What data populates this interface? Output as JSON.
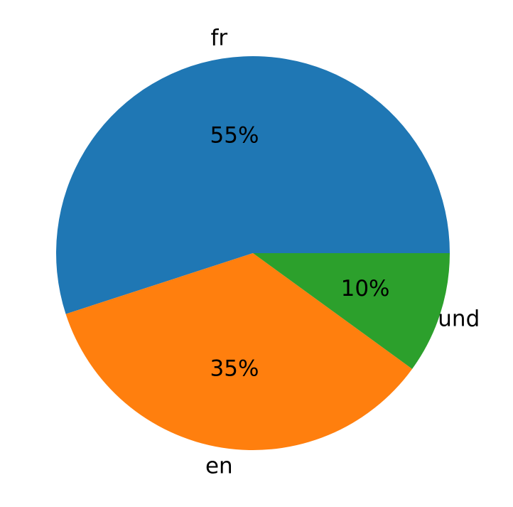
{
  "chart_data": {
    "type": "pie",
    "categories": [
      "fr",
      "en",
      "und"
    ],
    "values": [
      55,
      35,
      10
    ],
    "value_labels": [
      "55%",
      "35%",
      "10%"
    ],
    "colors": [
      "#1f77b4",
      "#ff7f0e",
      "#2ca02c"
    ]
  }
}
